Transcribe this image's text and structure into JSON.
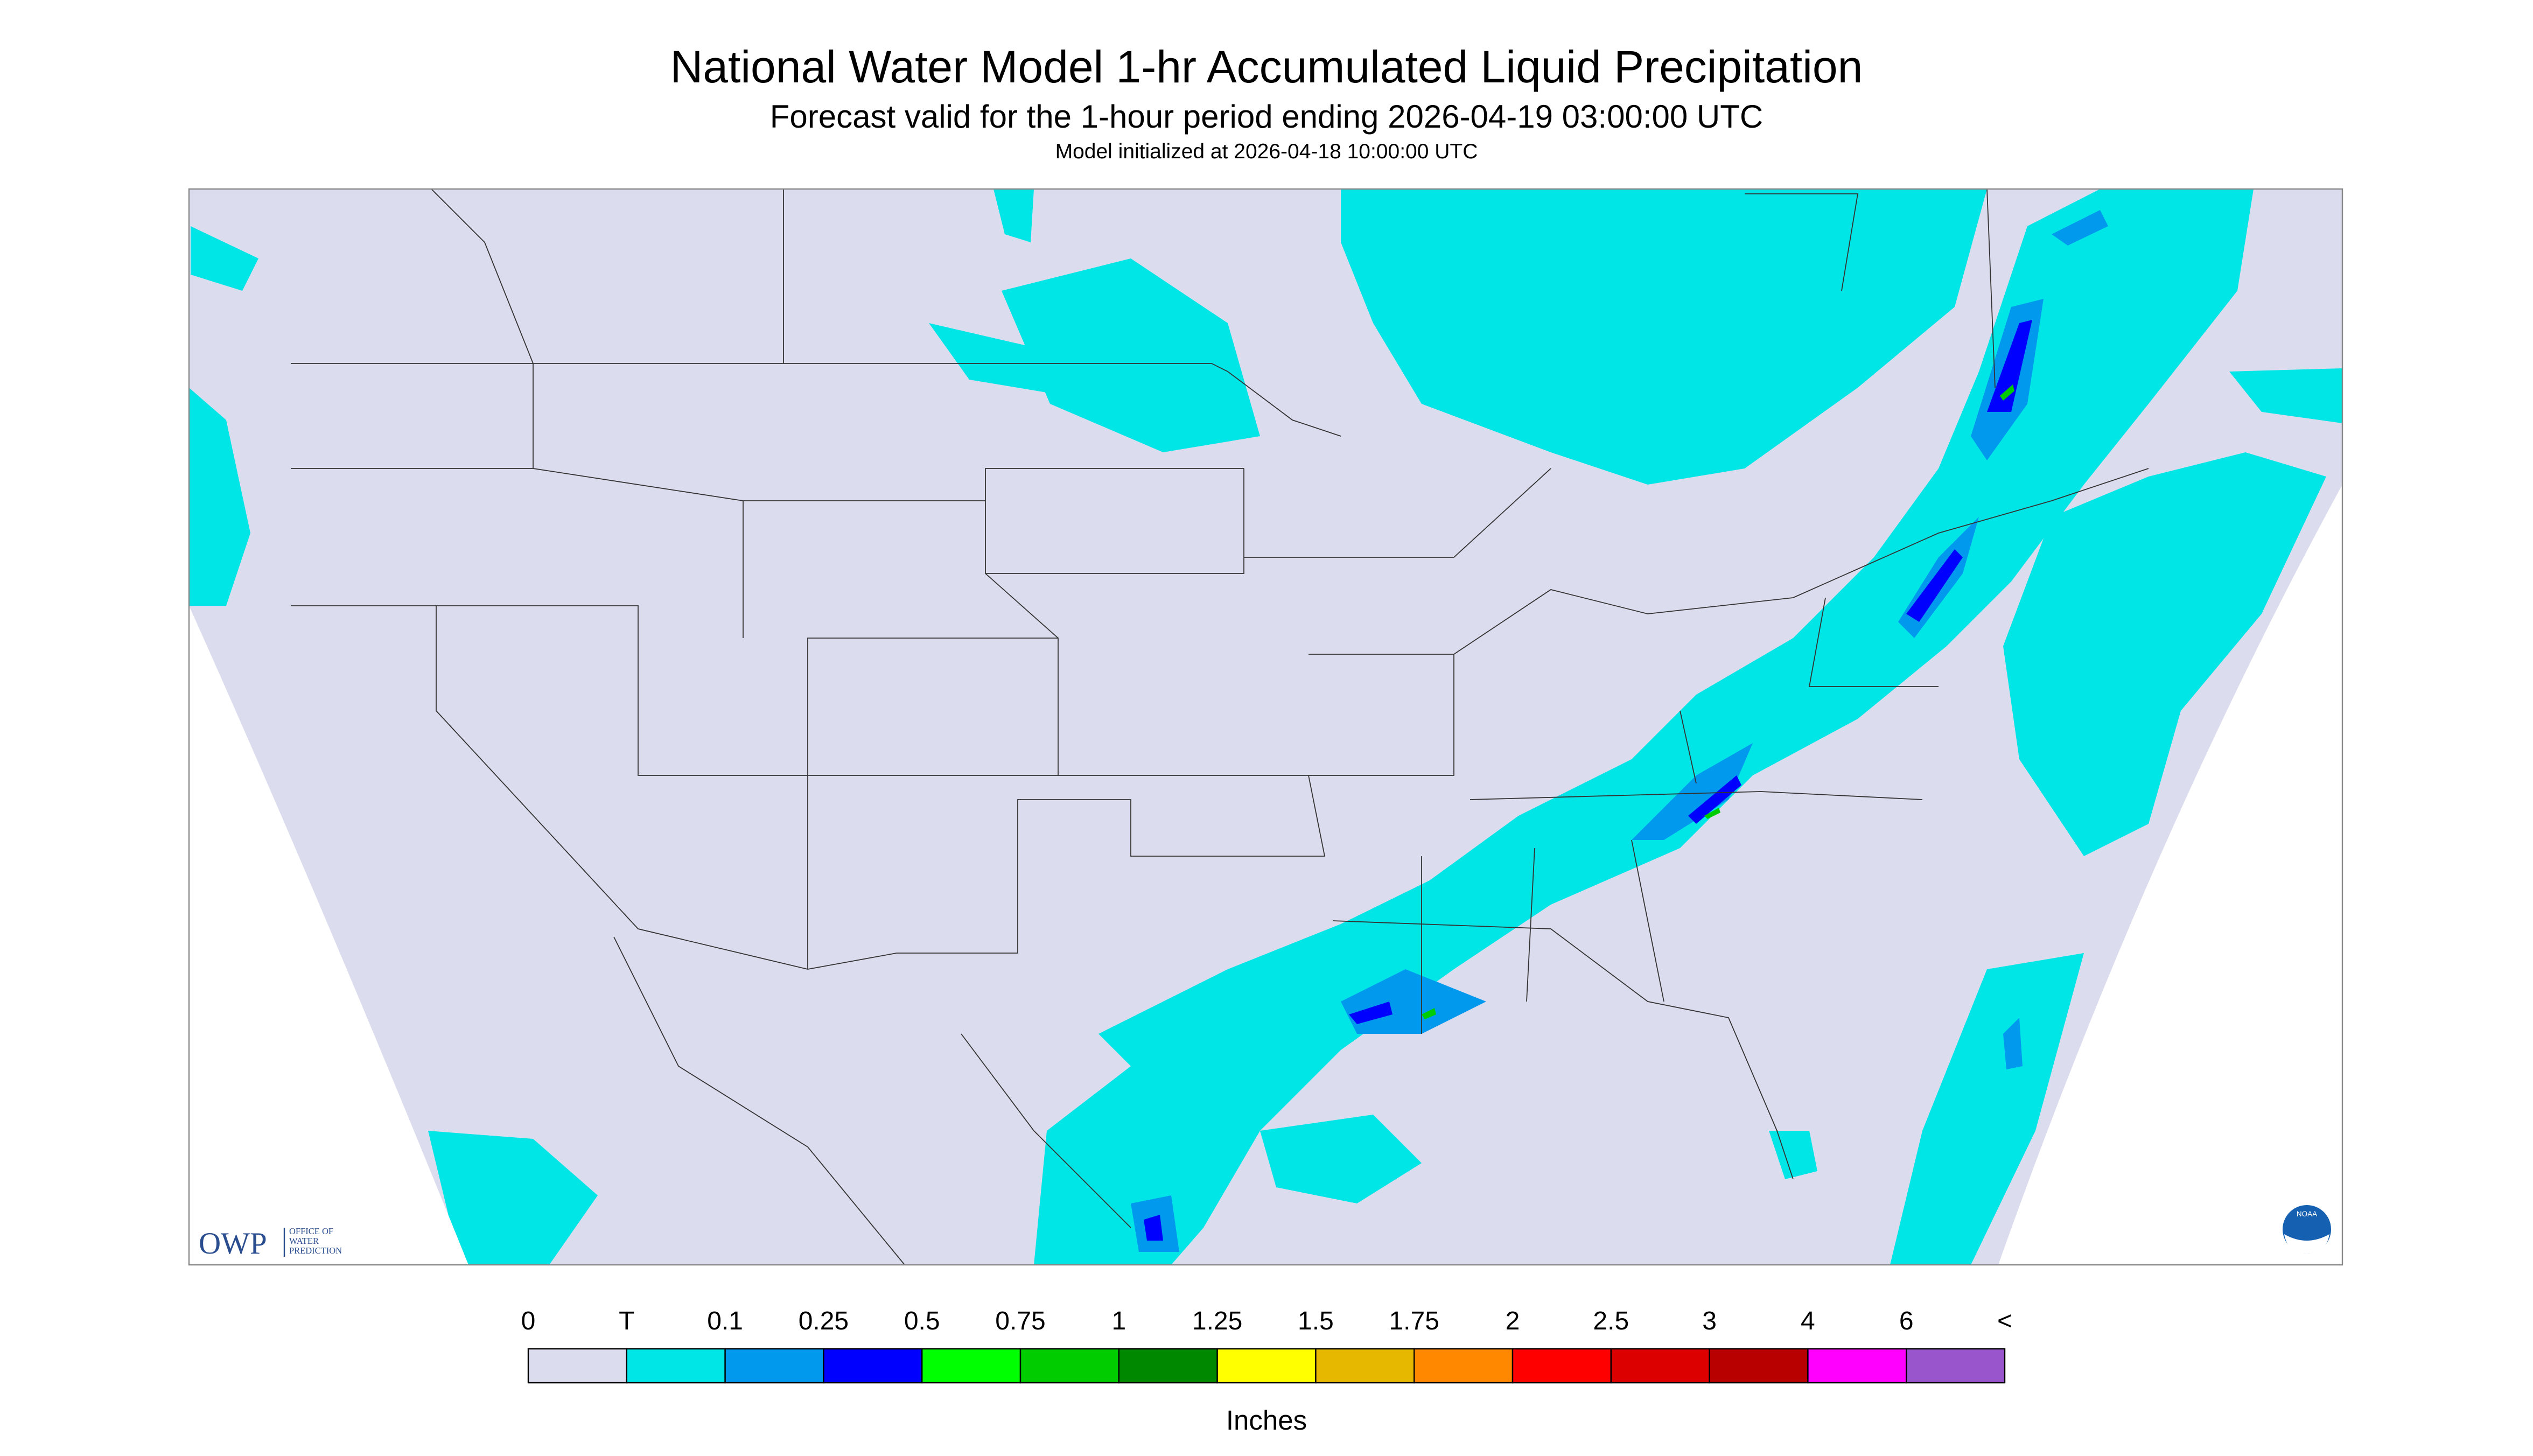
{
  "header": {
    "title": "National Water Model 1-hr Accumulated Liquid Precipitation",
    "subtitle": "Forecast valid for the 1-hour period ending 2026-04-19 03:00:00 UTC",
    "note": "Model initialized at 2026-04-18 10:00:00 UTC"
  },
  "logo": {
    "name": "OWP",
    "line1": "OFFICE OF",
    "line2": "WATER",
    "line3": "PREDICTION",
    "badge": "NOAA"
  },
  "legend": {
    "labels": [
      "0",
      "T",
      "0.1",
      "0.25",
      "0.5",
      "0.75",
      "1",
      "1.25",
      "1.5",
      "1.75",
      "2",
      "2.5",
      "3",
      "4",
      "6",
      "<"
    ],
    "colors": [
      "#dcdcef",
      "#00e5e5",
      "#0099ee",
      "#0000ff",
      "#00ff00",
      "#00cc00",
      "#008800",
      "#ffff00",
      "#e6b800",
      "#ff8800",
      "#ff0000",
      "#dd0000",
      "#b80000",
      "#ff00ff",
      "#9955cc"
    ],
    "unit": "Inches"
  }
}
